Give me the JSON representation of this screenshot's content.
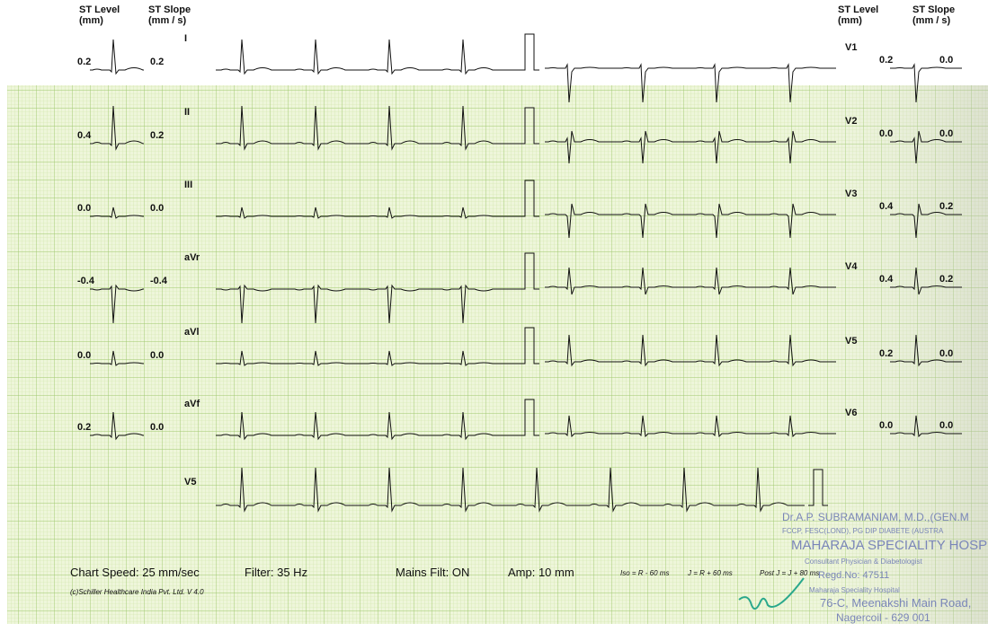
{
  "header": {
    "left_st_level": "ST Level",
    "left_st_level_unit": "(mm)",
    "left_st_slope": "ST Slope",
    "left_st_slope_unit": "(mm / s)",
    "right_st_level": "ST Level",
    "right_st_level_unit": "(mm)",
    "right_st_slope": "ST Slope",
    "right_st_slope_unit": "(mm / s)"
  },
  "left_leads": [
    {
      "label": "I",
      "st_level": "0.2",
      "st_slope": "0.2"
    },
    {
      "label": "II",
      "st_level": "0.4",
      "st_slope": "0.2"
    },
    {
      "label": "III",
      "st_level": "0.0",
      "st_slope": "0.0"
    },
    {
      "label": "aVr",
      "st_level": "-0.4",
      "st_slope": "-0.4"
    },
    {
      "label": "aVl",
      "st_level": "0.0",
      "st_slope": "0.0"
    },
    {
      "label": "aVf",
      "st_level": "0.2",
      "st_slope": "0.0"
    }
  ],
  "right_leads": [
    {
      "label": "V1",
      "st_level": "0.2",
      "st_slope": "0.0"
    },
    {
      "label": "V2",
      "st_level": "0.0",
      "st_slope": "0.0"
    },
    {
      "label": "V3",
      "st_level": "0.4",
      "st_slope": "0.2"
    },
    {
      "label": "V4",
      "st_level": "0.4",
      "st_slope": "0.2"
    },
    {
      "label": "V5",
      "st_level": "0.2",
      "st_slope": "0.0"
    },
    {
      "label": "V6",
      "st_level": "0.0",
      "st_slope": "0.0"
    }
  ],
  "rhythm_lead": "V5",
  "footer": {
    "chart_speed": "Chart Speed: 25 mm/sec",
    "filter": "Filter: 35 Hz",
    "mains": "Mains Filt: ON",
    "amp": "Amp: 10 mm",
    "iso": "Iso = R - 60 ms",
    "j": "J = R + 60 ms",
    "post_j": "Post J = J + 80 ms",
    "copyright": "(c)Schiller Healthcare India Pvt. Ltd. V 4.0"
  },
  "stamp": [
    "Dr.A.P. SUBRAMANIAM, M.D.,(GEN.M",
    "FCCP, FESC(LOND), PG DIP DIABETE (AUSTRA",
    "MAHARAJA SPECIALITY HOSPIT",
    "Consultant Physician & Diabetologist",
    "Regd.No: 47511",
    "Maharaja Speciality Hospital",
    "76-C, Meenakshi Main Road,",
    "Nagercoil - 629 001"
  ]
}
